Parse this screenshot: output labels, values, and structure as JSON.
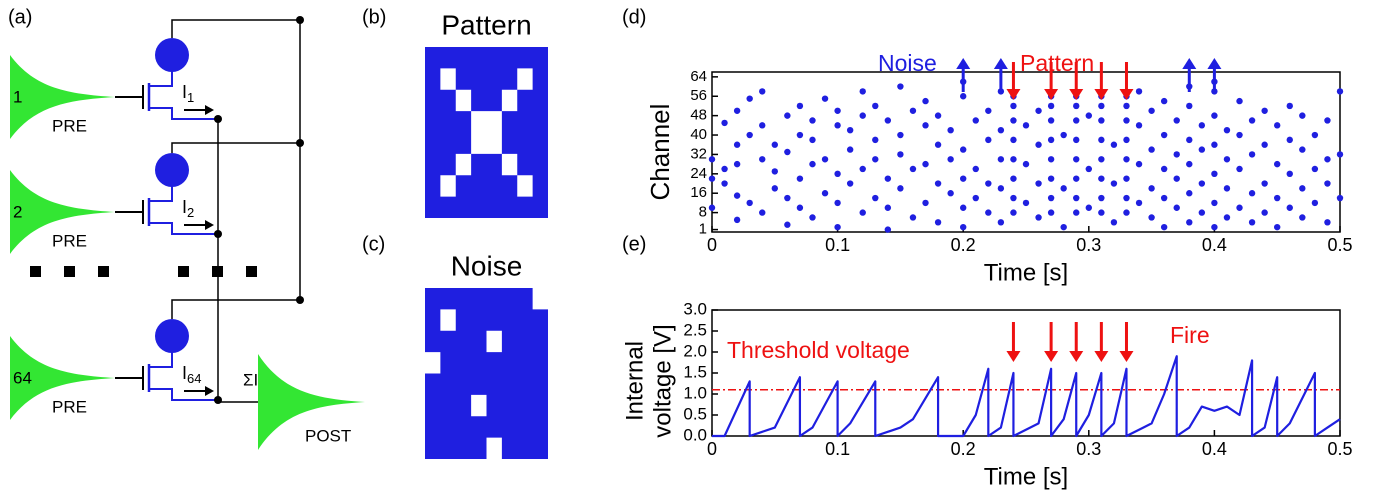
{
  "panel_labels": [
    "(a)",
    "(b)",
    "(c)",
    "(d)",
    "(e)"
  ],
  "circuit": {
    "inputs": [
      {
        "index": "1",
        "name": "PRE",
        "current": "I",
        "subscript": "1"
      },
      {
        "index": "2",
        "name": "PRE",
        "current": "I",
        "subscript": "2"
      },
      {
        "index": "64",
        "name": "PRE",
        "current": "I",
        "subscript": "64"
      }
    ],
    "sum": "ΣI",
    "output": "POST"
  },
  "pattern": {
    "title": "Pattern",
    "grid_size": 8,
    "white_cells": [
      [
        1,
        1
      ],
      [
        1,
        6
      ],
      [
        2,
        2
      ],
      [
        2,
        5
      ],
      [
        3,
        3
      ],
      [
        3,
        4
      ],
      [
        4,
        3
      ],
      [
        4,
        4
      ],
      [
        5,
        2
      ],
      [
        5,
        5
      ],
      [
        6,
        1
      ],
      [
        6,
        6
      ]
    ]
  },
  "noise": {
    "title": "Noise",
    "grid_size": 8,
    "white_cells": [
      [
        0,
        7
      ],
      [
        1,
        1
      ],
      [
        2,
        4
      ],
      [
        3,
        0
      ],
      [
        5,
        3
      ],
      [
        7,
        4
      ]
    ]
  },
  "chart_data": [
    {
      "type": "scatter",
      "x_label": "Time [s]",
      "y_label": "Channel",
      "color": "#1f1fe0",
      "x": [
        0,
        0,
        0,
        0.01,
        0.01,
        0.01,
        0.02,
        0.02,
        0.02,
        0.02,
        0.02,
        0.03,
        0.03,
        0.03,
        0.04,
        0.04,
        0.04,
        0.04,
        0.05,
        0.05,
        0.05,
        0.06,
        0.06,
        0.06,
        0.06,
        0.07,
        0.07,
        0.07,
        0.07,
        0.08,
        0.08,
        0.08,
        0.08,
        0.09,
        0.09,
        0.09,
        0.1,
        0.1,
        0.1,
        0.1,
        0.1,
        0.11,
        0.11,
        0.11,
        0.12,
        0.12,
        0.12,
        0.12,
        0.13,
        0.13,
        0.13,
        0.13,
        0.14,
        0.14,
        0.14,
        0.14,
        0.15,
        0.15,
        0.15,
        0.15,
        0.16,
        0.16,
        0.16,
        0.17,
        0.17,
        0.17,
        0.17,
        0.18,
        0.18,
        0.18,
        0.18,
        0.19,
        0.19,
        0.19,
        0.2,
        0.2,
        0.2,
        0.2,
        0.2,
        0.2,
        0.21,
        0.21,
        0.21,
        0.22,
        0.22,
        0.22,
        0.22,
        0.23,
        0.23,
        0.23,
        0.23,
        0.23,
        0.24,
        0.24,
        0.24,
        0.24,
        0.24,
        0.24,
        0.24,
        0.24,
        0.25,
        0.25,
        0.25,
        0.26,
        0.26,
        0.26,
        0.26,
        0.27,
        0.27,
        0.27,
        0.27,
        0.27,
        0.27,
        0.27,
        0.27,
        0.28,
        0.28,
        0.28,
        0.29,
        0.29,
        0.29,
        0.29,
        0.29,
        0.29,
        0.29,
        0.29,
        0.3,
        0.3,
        0.3,
        0.31,
        0.31,
        0.31,
        0.31,
        0.31,
        0.31,
        0.31,
        0.31,
        0.32,
        0.32,
        0.32,
        0.33,
        0.33,
        0.33,
        0.33,
        0.33,
        0.33,
        0.33,
        0.33,
        0.34,
        0.34,
        0.34,
        0.34,
        0.35,
        0.35,
        0.35,
        0.35,
        0.36,
        0.36,
        0.36,
        0.36,
        0.36,
        0.37,
        0.37,
        0.37,
        0.37,
        0.38,
        0.38,
        0.38,
        0.38,
        0.38,
        0.38,
        0.39,
        0.39,
        0.39,
        0.39,
        0.4,
        0.4,
        0.4,
        0.4,
        0.4,
        0.4,
        0.4,
        0.41,
        0.41,
        0.41,
        0.41,
        0.42,
        0.42,
        0.42,
        0.42,
        0.43,
        0.43,
        0.43,
        0.43,
        0.44,
        0.44,
        0.44,
        0.44,
        0.45,
        0.45,
        0.45,
        0.45,
        0.46,
        0.46,
        0.46,
        0.46,
        0.47,
        0.47,
        0.47,
        0.47,
        0.48,
        0.48,
        0.48,
        0.49,
        0.49,
        0.49,
        0.49,
        0.5,
        0.5,
        0.5
      ],
      "values": [
        10,
        22,
        30,
        20,
        26,
        45,
        5,
        15,
        28,
        36,
        50,
        12,
        40,
        55,
        8,
        30,
        44,
        58,
        18,
        25,
        36,
        3,
        14,
        33,
        48,
        10,
        22,
        40,
        52,
        6,
        28,
        38,
        46,
        16,
        30,
        55,
        2,
        12,
        24,
        44,
        50,
        20,
        34,
        42,
        8,
        26,
        48,
        58,
        14,
        30,
        38,
        52,
        1,
        10,
        22,
        46,
        18,
        32,
        40,
        60,
        6,
        26,
        50,
        12,
        28,
        44,
        54,
        4,
        20,
        36,
        48,
        16,
        30,
        42,
        2,
        10,
        22,
        34,
        56,
        62,
        14,
        26,
        46,
        8,
        20,
        38,
        50,
        4,
        18,
        30,
        42,
        58,
        8,
        14,
        22,
        30,
        38,
        46,
        52,
        56,
        12,
        28,
        44,
        6,
        20,
        36,
        50,
        8,
        14,
        22,
        30,
        38,
        46,
        52,
        56,
        2,
        18,
        40,
        8,
        14,
        22,
        30,
        38,
        46,
        52,
        56,
        10,
        26,
        48,
        8,
        14,
        22,
        30,
        38,
        46,
        52,
        56,
        4,
        20,
        36,
        8,
        14,
        22,
        30,
        38,
        46,
        52,
        56,
        12,
        28,
        44,
        58,
        6,
        18,
        34,
        50,
        2,
        14,
        26,
        40,
        54,
        10,
        22,
        32,
        46,
        4,
        16,
        28,
        38,
        52,
        60,
        8,
        20,
        34,
        44,
        2,
        12,
        24,
        36,
        48,
        58,
        62,
        6,
        18,
        30,
        42,
        10,
        26,
        40,
        54,
        4,
        16,
        32,
        46,
        8,
        20,
        36,
        50,
        2,
        14,
        28,
        44,
        10,
        24,
        38,
        52,
        6,
        18,
        34,
        48,
        12,
        26,
        40,
        4,
        20,
        30,
        46,
        14,
        32,
        58
      ],
      "xlim": [
        0,
        0.5
      ],
      "ylim": [
        0,
        66
      ],
      "xticks": [
        0,
        0.1,
        0.2,
        0.3,
        0.4,
        0.5
      ],
      "yticks": [
        1,
        8,
        16,
        24,
        32,
        40,
        48,
        56,
        64
      ],
      "annotations": [
        {
          "text": "Noise",
          "color": "#1f1fe0",
          "direction": "up",
          "arrows": [
            0.2,
            0.23,
            0.38,
            0.4
          ]
        },
        {
          "text": "Pattern",
          "color": "#ee1111",
          "direction": "down",
          "arrows": [
            0.24,
            0.27,
            0.29,
            0.31,
            0.33
          ]
        }
      ]
    },
    {
      "type": "line",
      "x_label": "Time [s]",
      "y_label": [
        "Internal",
        "voltage [V]"
      ],
      "color": "#1f1fe0",
      "x": [
        0,
        0.01,
        0.03,
        0.03,
        0.05,
        0.07,
        0.07,
        0.08,
        0.1,
        0.1,
        0.11,
        0.13,
        0.13,
        0.15,
        0.16,
        0.18,
        0.18,
        0.2,
        0.21,
        0.22,
        0.22,
        0.23,
        0.24,
        0.24,
        0.26,
        0.27,
        0.27,
        0.28,
        0.29,
        0.29,
        0.3,
        0.31,
        0.31,
        0.32,
        0.33,
        0.33,
        0.35,
        0.36,
        0.37,
        0.37,
        0.38,
        0.39,
        0.4,
        0.41,
        0.42,
        0.43,
        0.43,
        0.44,
        0.45,
        0.45,
        0.46,
        0.48,
        0.48,
        0.49,
        0.5
      ],
      "values": [
        0,
        0,
        1.3,
        0,
        0.2,
        1.4,
        0,
        0.2,
        1.3,
        0,
        0.3,
        1.3,
        0,
        0.2,
        0.4,
        1.4,
        0,
        0,
        0.5,
        1.6,
        0,
        0.2,
        1.5,
        0,
        0.3,
        1.6,
        0,
        0.4,
        1.5,
        0,
        0.5,
        1.5,
        0,
        0.3,
        1.6,
        0,
        0.3,
        1.0,
        1.9,
        0,
        0.2,
        0.7,
        0.6,
        0.7,
        0.5,
        1.8,
        0,
        0.2,
        1.4,
        0,
        0.3,
        1.5,
        0,
        0.2,
        0.4
      ],
      "xlim": [
        0,
        0.5
      ],
      "ylim": [
        0,
        3
      ],
      "xticks": [
        0,
        0.1,
        0.2,
        0.3,
        0.4,
        0.5
      ],
      "yticks": [
        {
          "value": 0,
          "label": "0.0"
        },
        {
          "value": 0.5,
          "label": "0.5"
        },
        {
          "value": 1,
          "label": "1.0"
        },
        {
          "value": 1.5,
          "label": "1.5"
        },
        {
          "value": 2,
          "label": "2.0"
        },
        {
          "value": 2.5,
          "label": "2.5"
        },
        {
          "value": 3,
          "label": "3.0"
        }
      ],
      "threshold": {
        "value": 1.1,
        "label": "Threshold voltage",
        "color": "#ee1111"
      },
      "annotations": [
        {
          "text": "Fire",
          "color": "#ee1111",
          "direction": "down",
          "arrows": [
            0.24,
            0.27,
            0.29,
            0.31,
            0.33
          ]
        }
      ]
    }
  ]
}
